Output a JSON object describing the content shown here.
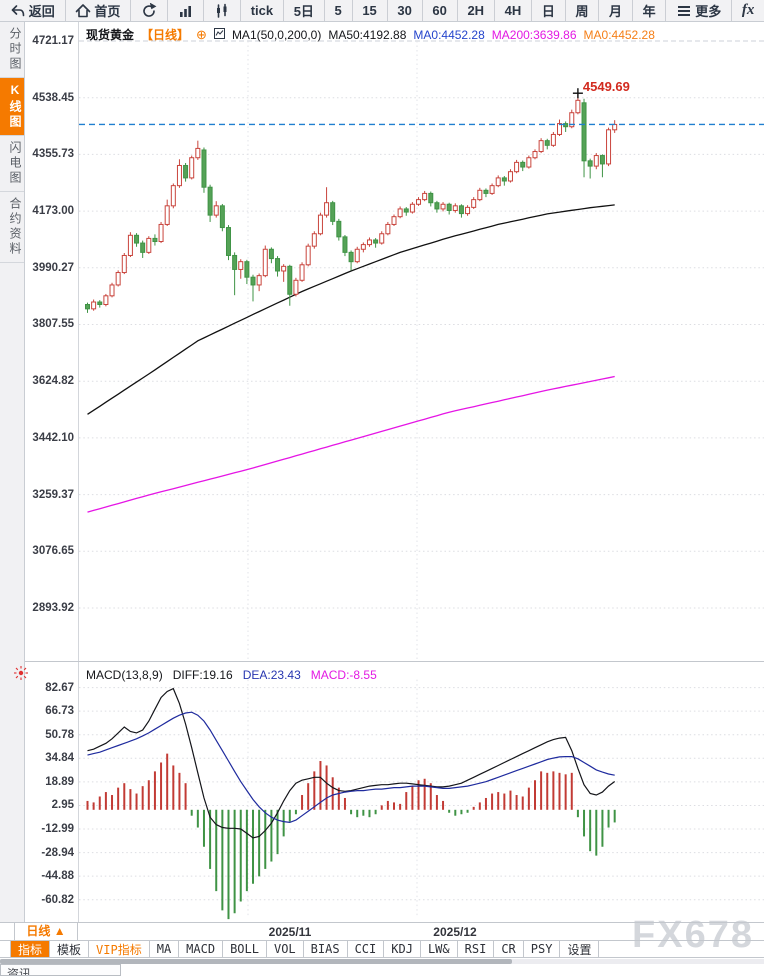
{
  "toolbar": {
    "items": [
      {
        "id": "back",
        "label": "返回",
        "icon": "back-icon"
      },
      {
        "id": "home",
        "label": "首页",
        "icon": "home-icon"
      },
      {
        "id": "refresh",
        "label": "",
        "icon": "refresh-icon"
      },
      {
        "id": "bar-chart",
        "label": "",
        "icon": "bar-chart-icon"
      },
      {
        "id": "candlestick",
        "label": "",
        "icon": "candlestick-icon"
      },
      {
        "id": "tick",
        "label": "tick"
      },
      {
        "id": "5d",
        "label": "5日"
      },
      {
        "id": "m5",
        "label": "5"
      },
      {
        "id": "m15",
        "label": "15"
      },
      {
        "id": "m30",
        "label": "30"
      },
      {
        "id": "m60",
        "label": "60"
      },
      {
        "id": "h2",
        "label": "2H"
      },
      {
        "id": "h4",
        "label": "4H"
      },
      {
        "id": "day",
        "label": "日"
      },
      {
        "id": "week",
        "label": "周"
      },
      {
        "id": "month",
        "label": "月"
      },
      {
        "id": "year",
        "label": "年"
      },
      {
        "id": "more",
        "label": "更多",
        "icon": "menu-icon"
      },
      {
        "id": "fx",
        "label": "fx",
        "fx": true
      }
    ]
  },
  "sidebar": {
    "tabs": [
      {
        "label": "分时图",
        "active": false
      },
      {
        "label": "K线图",
        "active": true
      },
      {
        "label": "闪电图",
        "active": false
      },
      {
        "label": "合约资料",
        "active": false
      }
    ]
  },
  "chart_header": {
    "symbol": "现货黄金",
    "period_tag": "【日线】",
    "plus_icon": "⊕",
    "ma_settings": "MA1(50,0,200,0)",
    "ma50_label": "MA50:4192.88",
    "ma0_blue": "MA0:4452.28",
    "ma200_label": "MA200:3639.86",
    "ma0_orange": "MA0:4452.28"
  },
  "macd_header": {
    "title": "MACD(13,8,9)",
    "diff": "DIFF:19.16",
    "dea": "DEA:23.43",
    "macd": "MACD:-8.55"
  },
  "annotation": {
    "high_label": "4549.69"
  },
  "bottom": {
    "period_label": "日线 ▲",
    "x_labels": [
      {
        "text": "2025/11",
        "x": 290
      },
      {
        "text": "2025/12",
        "x": 455
      }
    ],
    "tabs": [
      {
        "label": "指标",
        "style": "active"
      },
      {
        "label": "模板",
        "style": ""
      },
      {
        "label": "VIP指标",
        "style": "vip"
      },
      {
        "label": "MA",
        "style": ""
      },
      {
        "label": "MACD",
        "style": ""
      },
      {
        "label": "BOLL",
        "style": ""
      },
      {
        "label": "VOL",
        "style": ""
      },
      {
        "label": "BIAS",
        "style": ""
      },
      {
        "label": "CCI",
        "style": ""
      },
      {
        "label": "KDJ",
        "style": ""
      },
      {
        "label": "LW&",
        "style": ""
      },
      {
        "label": "RSI",
        "style": ""
      },
      {
        "label": "CR",
        "style": ""
      },
      {
        "label": "PSY",
        "style": ""
      },
      {
        "label": "设置",
        "style": ""
      }
    ],
    "partial_tab": "资讯"
  },
  "watermark": "FX678",
  "colors": {
    "up": "#c9443c",
    "down": "#3f9345",
    "down_fill": "#55a257",
    "ma50": "#111111",
    "ma200": "#e515e5",
    "dea": "#1f2b9e",
    "diff": "#14151a",
    "price_line": "#1f7fd0",
    "accent_orange": "#f57a00",
    "annotation_red": "#d22a1e"
  },
  "chart_data": {
    "type": "candlestick",
    "title": "现货黄金 日线",
    "panes": [
      "price",
      "macd"
    ],
    "main": {
      "y_ticks": [
        4721.17,
        4538.45,
        4355.73,
        4173.0,
        3990.27,
        3807.55,
        3624.82,
        3442.1,
        3259.37,
        3076.65,
        2893.92
      ],
      "price_line": 4452.28,
      "high_annotation": {
        "price": 4549.69,
        "index": 80
      },
      "ma50_last": 4192.88,
      "ma200_last": 3639.86,
      "last_close": 4452.28,
      "candles": [
        [
          3872,
          3878,
          3845,
          3858
        ],
        [
          3858,
          3888,
          3852,
          3880
        ],
        [
          3880,
          3886,
          3862,
          3872
        ],
        [
          3872,
          3906,
          3866,
          3900
        ],
        [
          3900,
          3942,
          3895,
          3935
        ],
        [
          3935,
          3982,
          3930,
          3975
        ],
        [
          3975,
          4038,
          3970,
          4030
        ],
        [
          4030,
          4105,
          4025,
          4095
        ],
        [
          4095,
          4102,
          4058,
          4070
        ],
        [
          4070,
          4078,
          4022,
          4040
        ],
        [
          4040,
          4092,
          4035,
          4085
        ],
        [
          4085,
          4098,
          4062,
          4075
        ],
        [
          4075,
          4138,
          4070,
          4130
        ],
        [
          4130,
          4210,
          4125,
          4190
        ],
        [
          4190,
          4262,
          4182,
          4255
        ],
        [
          4255,
          4340,
          4248,
          4320
        ],
        [
          4320,
          4328,
          4268,
          4280
        ],
        [
          4280,
          4352,
          4275,
          4345
        ],
        [
          4345,
          4400,
          4338,
          4375
        ],
        [
          4370,
          4378,
          4232,
          4250
        ],
        [
          4250,
          4258,
          4138,
          4160
        ],
        [
          4160,
          4205,
          4152,
          4190
        ],
        [
          4190,
          4196,
          4108,
          4120
        ],
        [
          4120,
          4128,
          4015,
          4030
        ],
        [
          4030,
          4040,
          3902,
          3985
        ],
        [
          3985,
          4018,
          3955,
          4010
        ],
        [
          4010,
          4016,
          3938,
          3960
        ],
        [
          3960,
          3968,
          3882,
          3935
        ],
        [
          3935,
          3972,
          3915,
          3965
        ],
        [
          3965,
          4062,
          3960,
          4050
        ],
        [
          4050,
          4056,
          4005,
          4020
        ],
        [
          4020,
          4028,
          3962,
          3980
        ],
        [
          3980,
          4002,
          3945,
          3995
        ],
        [
          3995,
          4000,
          3868,
          3905
        ],
        [
          3905,
          3958,
          3898,
          3950
        ],
        [
          3950,
          4008,
          3945,
          4000
        ],
        [
          4000,
          4068,
          3995,
          4060
        ],
        [
          4060,
          4108,
          4052,
          4100
        ],
        [
          4100,
          4168,
          4095,
          4160
        ],
        [
          4160,
          4250,
          4152,
          4200
        ],
        [
          4200,
          4206,
          4128,
          4140
        ],
        [
          4140,
          4148,
          4078,
          4090
        ],
        [
          4090,
          4096,
          4028,
          4040
        ],
        [
          4040,
          4046,
          3982,
          4010
        ],
        [
          4010,
          4058,
          4005,
          4050
        ],
        [
          4050,
          4072,
          4040,
          4065
        ],
        [
          4065,
          4088,
          4058,
          4080
        ],
        [
          4080,
          4086,
          4055,
          4070
        ],
        [
          4070,
          4108,
          4065,
          4100
        ],
        [
          4100,
          4138,
          4095,
          4130
        ],
        [
          4130,
          4162,
          4125,
          4155
        ],
        [
          4155,
          4188,
          4150,
          4180
        ],
        [
          4180,
          4186,
          4158,
          4170
        ],
        [
          4170,
          4202,
          4165,
          4195
        ],
        [
          4195,
          4218,
          4190,
          4210
        ],
        [
          4210,
          4238,
          4205,
          4230
        ],
        [
          4230,
          4236,
          4188,
          4200
        ],
        [
          4200,
          4206,
          4168,
          4180
        ],
        [
          4180,
          4202,
          4172,
          4195
        ],
        [
          4195,
          4200,
          4162,
          4175
        ],
        [
          4175,
          4198,
          4168,
          4190
        ],
        [
          4190,
          4195,
          4152,
          4165
        ],
        [
          4165,
          4192,
          4158,
          4185
        ],
        [
          4185,
          4218,
          4180,
          4210
        ],
        [
          4210,
          4248,
          4205,
          4240
        ],
        [
          4240,
          4246,
          4218,
          4230
        ],
        [
          4230,
          4262,
          4225,
          4255
        ],
        [
          4255,
          4288,
          4250,
          4280
        ],
        [
          4280,
          4286,
          4255,
          4270
        ],
        [
          4270,
          4308,
          4265,
          4300
        ],
        [
          4300,
          4338,
          4295,
          4330
        ],
        [
          4330,
          4336,
          4302,
          4315
        ],
        [
          4315,
          4352,
          4310,
          4345
        ],
        [
          4345,
          4372,
          4340,
          4365
        ],
        [
          4365,
          4408,
          4360,
          4400
        ],
        [
          4400,
          4406,
          4372,
          4385
        ],
        [
          4385,
          4428,
          4380,
          4420
        ],
        [
          4420,
          4468,
          4415,
          4455
        ],
        [
          4455,
          4462,
          4428,
          4445
        ],
        [
          4445,
          4500,
          4440,
          4490
        ],
        [
          4490,
          4549.69,
          4485,
          4530
        ],
        [
          4522,
          4535,
          4282,
          4335
        ],
        [
          4335,
          4342,
          4278,
          4318
        ],
        [
          4318,
          4360,
          4308,
          4352
        ],
        [
          4352,
          4356,
          4282,
          4325
        ],
        [
          4325,
          4442,
          4318,
          4435
        ],
        [
          4435,
          4466,
          4425,
          4452.28
        ]
      ],
      "ma50_anchors": [
        [
          0,
          3518
        ],
        [
          10,
          3648
        ],
        [
          18,
          3755
        ],
        [
          27,
          3840
        ],
        [
          35,
          3914
        ],
        [
          43,
          3980
        ],
        [
          51,
          4040
        ],
        [
          59,
          4088
        ],
        [
          67,
          4130
        ],
        [
          75,
          4164
        ],
        [
          82,
          4184
        ],
        [
          86,
          4192.88
        ]
      ],
      "ma200_anchors": [
        [
          0,
          3203
        ],
        [
          10,
          3258
        ],
        [
          27,
          3345
        ],
        [
          43,
          3435
        ],
        [
          59,
          3525
        ],
        [
          75,
          3596
        ],
        [
          86,
          3639.86
        ]
      ]
    },
    "macd": {
      "y_ticks": [
        82.67,
        66.73,
        50.78,
        34.84,
        18.89,
        2.95,
        -12.99,
        -28.94,
        -44.88,
        -60.82
      ],
      "diff_last": 19.16,
      "dea_last": 23.43,
      "macd_last": -8.55,
      "histogram": [
        6,
        5,
        9,
        12,
        10,
        15,
        18,
        14,
        11,
        16,
        20,
        26,
        32,
        38,
        30,
        25,
        18,
        -4,
        -12,
        -25,
        -40,
        -55,
        -68,
        -74,
        -70,
        -62,
        -55,
        -50,
        -45,
        -40,
        -35,
        -30,
        -18,
        -8,
        -3,
        10,
        18,
        26,
        33,
        30,
        22,
        15,
        8,
        -3,
        -5,
        -4,
        -5,
        -3,
        3,
        6,
        5,
        4,
        12,
        16,
        20,
        21,
        18,
        10,
        6,
        -2,
        -4,
        -3,
        -2,
        2,
        5,
        8,
        11,
        12,
        11,
        13,
        10,
        9,
        15,
        20,
        26,
        25,
        26,
        25,
        24,
        25,
        -5,
        -18,
        -28,
        -31,
        -25,
        -12,
        -8.55
      ],
      "diff": [
        40,
        41,
        43,
        45,
        48,
        52,
        56,
        53,
        52,
        54,
        60,
        68,
        76,
        80,
        82,
        72,
        58,
        42,
        25,
        8,
        -5,
        -10,
        -12,
        -12.5,
        -12.5,
        -13,
        -16,
        -19,
        -18,
        -14,
        -9,
        -2,
        6,
        13,
        18,
        20,
        21,
        22,
        22,
        18,
        15,
        13,
        12.5,
        13,
        14,
        15,
        16,
        16.5,
        17,
        17,
        17.5,
        18,
        18,
        17.5,
        17,
        16.5,
        16,
        15.5,
        15.5,
        16,
        17,
        18,
        20,
        22,
        24,
        26,
        28,
        30,
        32,
        34,
        36,
        38,
        40,
        42,
        44,
        46,
        47.5,
        48.5,
        49,
        40,
        28,
        17,
        11,
        10,
        12,
        16,
        19.16
      ],
      "dea": [
        37,
        38,
        39,
        40.5,
        42,
        43.5,
        45,
        46.5,
        48,
        50,
        52,
        54.5,
        57,
        59.5,
        62,
        64,
        65.5,
        66,
        64,
        60,
        54,
        47,
        40,
        33,
        26,
        19,
        13,
        7,
        2,
        -2,
        -5,
        -7,
        -8,
        -8.5,
        -7,
        -4,
        -1,
        2,
        5,
        8,
        10,
        11,
        12,
        12.5,
        13,
        13,
        13.5,
        14,
        14,
        14.5,
        15,
        15,
        15.5,
        16,
        16,
        16,
        15.5,
        15,
        14.5,
        14.5,
        15,
        15.5,
        16,
        17,
        18,
        19,
        20.5,
        22,
        23.5,
        25,
        26.5,
        28,
        29.5,
        31,
        32.5,
        34,
        35,
        35.8,
        36,
        36,
        34.5,
        32,
        29.5,
        27,
        25.5,
        24.2,
        23.43
      ]
    }
  }
}
